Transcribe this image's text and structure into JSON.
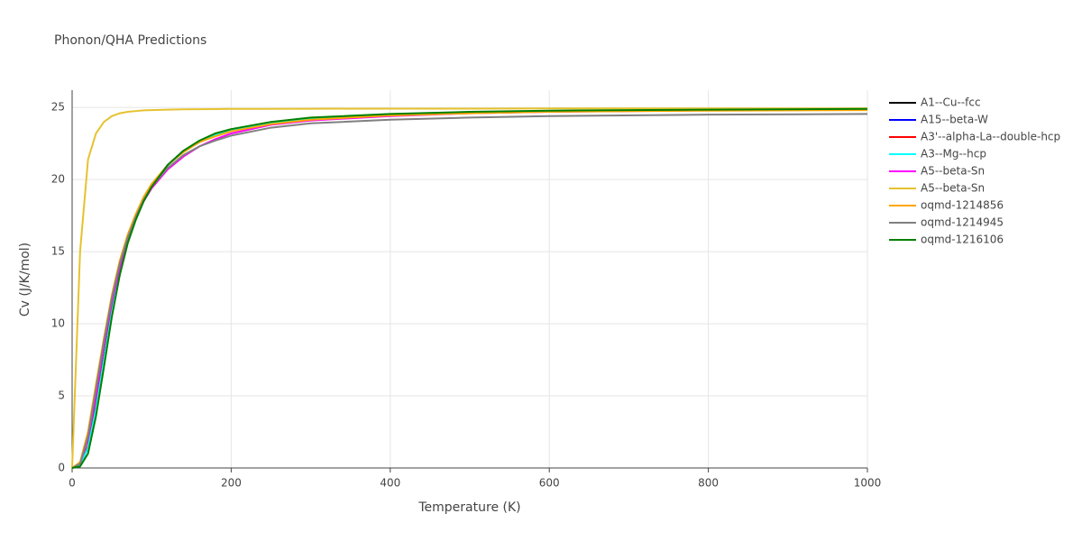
{
  "chart_data": {
    "type": "line",
    "title": "Phonon/QHA Predictions",
    "x_label": "Temperature (K)",
    "y_label": "Cv (J/K/mol)",
    "x": [
      0,
      10,
      20,
      30,
      40,
      50,
      60,
      70,
      80,
      90,
      100,
      120,
      140,
      160,
      180,
      200,
      250,
      300,
      400,
      500,
      600,
      800,
      1000
    ],
    "xlim": [
      0,
      1000
    ],
    "xticks": [
      0,
      200,
      400,
      600,
      800,
      1000
    ],
    "ylim": [
      0,
      26.2
    ],
    "yticks": [
      0,
      5,
      10,
      15,
      20,
      25
    ],
    "grid": true,
    "legend": "right",
    "series": [
      {
        "name": "A1--Cu--fcc",
        "color": "#000000",
        "values": [
          0,
          0.2,
          1.5,
          4.3,
          7.7,
          11,
          13.8,
          15.9,
          17.4,
          18.6,
          19.6,
          21,
          22,
          22.6,
          23.1,
          23.45,
          23.95,
          24.25,
          24.5,
          24.65,
          24.75,
          24.83,
          24.88
        ]
      },
      {
        "name": "A15--beta-W",
        "color": "#0000ff",
        "values": [
          0,
          0.2,
          1.4,
          4.2,
          7.6,
          10.9,
          13.7,
          15.8,
          17.4,
          18.6,
          19.6,
          21,
          22,
          22.6,
          23.1,
          23.45,
          23.95,
          24.25,
          24.5,
          24.65,
          24.75,
          24.83,
          24.88
        ]
      },
      {
        "name": "A3'--alpha-La--double-hcp",
        "color": "#ff0000",
        "values": [
          0,
          0.2,
          1.5,
          4.2,
          7.6,
          10.9,
          13.7,
          15.8,
          17.4,
          18.6,
          19.6,
          21,
          22,
          22.6,
          23.1,
          23.45,
          23.95,
          24.25,
          24.5,
          24.65,
          24.75,
          24.83,
          24.88
        ]
      },
      {
        "name": "A3--Mg--hcp",
        "color": "#00ffff",
        "values": [
          0,
          0.2,
          1.4,
          4.1,
          7.5,
          10.8,
          13.6,
          15.8,
          17.4,
          18.6,
          19.6,
          21,
          22,
          22.6,
          23.1,
          23.45,
          23.95,
          24.25,
          24.5,
          24.65,
          24.75,
          24.83,
          24.88
        ]
      },
      {
        "name": "A5--beta-Sn",
        "color": "#ff00ff",
        "values": [
          0,
          0.3,
          2,
          5,
          8.5,
          11.5,
          13.9,
          15.8,
          17.3,
          18.5,
          19.4,
          20.7,
          21.6,
          22.3,
          22.8,
          23.2,
          23.8,
          24.1,
          24.4,
          24.6,
          24.7,
          24.8,
          24.85
        ]
      },
      {
        "name": "A5--beta-Sn",
        "color": "#e6c22e",
        "values": [
          0,
          15,
          21.4,
          23.2,
          24,
          24.4,
          24.6,
          24.7,
          24.75,
          24.8,
          24.82,
          24.85,
          24.87,
          24.88,
          24.89,
          24.9,
          24.9,
          24.91,
          24.92,
          24.92,
          24.93,
          24.93,
          24.93
        ]
      },
      {
        "name": "oqmd-1214856",
        "color": "#ffa500",
        "values": [
          0,
          0.4,
          2.5,
          5.8,
          9,
          12,
          14.4,
          16.2,
          17.6,
          18.8,
          19.7,
          21,
          21.9,
          22.6,
          23,
          23.35,
          23.85,
          24.15,
          24.45,
          24.6,
          24.7,
          24.78,
          24.82
        ]
      },
      {
        "name": "oqmd-1214945",
        "color": "#808080",
        "values": [
          0,
          0.3,
          2.2,
          5.5,
          8.8,
          11.8,
          14.2,
          16,
          17.4,
          18.6,
          19.5,
          20.8,
          21.7,
          22.3,
          22.7,
          23.05,
          23.6,
          23.9,
          24.15,
          24.3,
          24.4,
          24.5,
          24.55
        ]
      },
      {
        "name": "oqmd-1216106",
        "color": "#008000",
        "values": [
          0,
          0.1,
          1,
          3.6,
          7,
          10.5,
          13.4,
          15.6,
          17.2,
          18.5,
          19.5,
          21,
          22,
          22.7,
          23.2,
          23.5,
          24,
          24.3,
          24.55,
          24.7,
          24.78,
          24.85,
          24.9
        ]
      }
    ]
  }
}
